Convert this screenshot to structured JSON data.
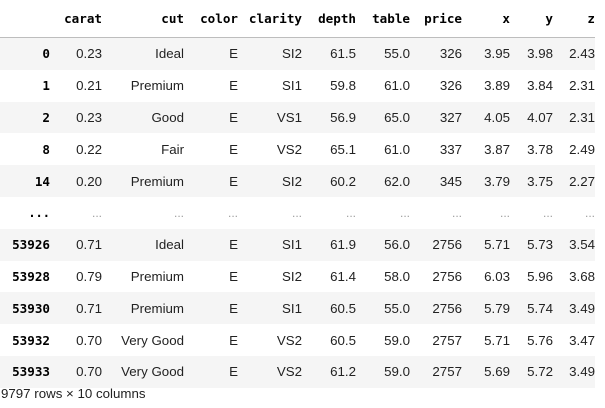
{
  "dataframe": {
    "columns": [
      "",
      "carat",
      "cut",
      "color",
      "clarity",
      "depth",
      "table",
      "price",
      "x",
      "y",
      "z"
    ],
    "rows": [
      [
        "0",
        "0.23",
        "Ideal",
        "E",
        "SI2",
        "61.5",
        "55.0",
        "326",
        "3.95",
        "3.98",
        "2.43"
      ],
      [
        "1",
        "0.21",
        "Premium",
        "E",
        "SI1",
        "59.8",
        "61.0",
        "326",
        "3.89",
        "3.84",
        "2.31"
      ],
      [
        "2",
        "0.23",
        "Good",
        "E",
        "VS1",
        "56.9",
        "65.0",
        "327",
        "4.05",
        "4.07",
        "2.31"
      ],
      [
        "8",
        "0.22",
        "Fair",
        "E",
        "VS2",
        "65.1",
        "61.0",
        "337",
        "3.87",
        "3.78",
        "2.49"
      ],
      [
        "14",
        "0.20",
        "Premium",
        "E",
        "SI2",
        "60.2",
        "62.0",
        "345",
        "3.79",
        "3.75",
        "2.27"
      ],
      [
        "...",
        "...",
        "...",
        "...",
        "...",
        "...",
        "...",
        "...",
        "...",
        "...",
        "..."
      ],
      [
        "53926",
        "0.71",
        "Ideal",
        "E",
        "SI1",
        "61.9",
        "56.0",
        "2756",
        "5.71",
        "5.73",
        "3.54"
      ],
      [
        "53928",
        "0.79",
        "Premium",
        "E",
        "SI2",
        "61.4",
        "58.0",
        "2756",
        "6.03",
        "5.96",
        "3.68"
      ],
      [
        "53930",
        "0.71",
        "Premium",
        "E",
        "SI1",
        "60.5",
        "55.0",
        "2756",
        "5.79",
        "5.74",
        "3.49"
      ],
      [
        "53932",
        "0.70",
        "Very Good",
        "E",
        "VS2",
        "60.5",
        "59.0",
        "2757",
        "5.71",
        "5.76",
        "3.47"
      ],
      [
        "53933",
        "0.70",
        "Very Good",
        "E",
        "VS2",
        "61.2",
        "59.0",
        "2757",
        "5.69",
        "5.72",
        "3.49"
      ]
    ],
    "shape_text": "9797 rows × 10 columns"
  }
}
